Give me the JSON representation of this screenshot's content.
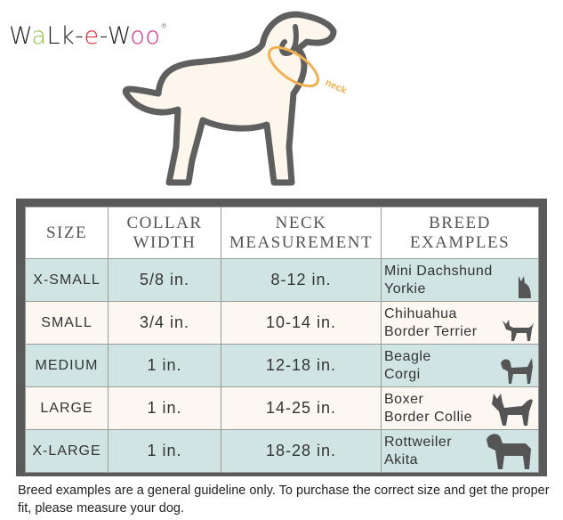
{
  "logo": {
    "parts": [
      {
        "text": "W",
        "color": "#222222"
      },
      {
        "text": "a",
        "color": "#8cc63f"
      },
      {
        "text": "Lk-",
        "color": "#222222"
      },
      {
        "text": "e",
        "color": "#e0262e"
      },
      {
        "text": "-W",
        "color": "#222222"
      },
      {
        "text": "oo",
        "color": "#d6247c"
      }
    ],
    "mark": "®"
  },
  "illustration": {
    "neck_label": "neck",
    "accent": "#f0b050"
  },
  "table": {
    "headers": [
      [
        "SIZE"
      ],
      [
        "COLLAR",
        "WIDTH"
      ],
      [
        "NECK",
        "MEASUREMENT"
      ],
      [
        "BREED",
        "EXAMPLES"
      ]
    ],
    "rows": [
      {
        "size": "X-SMALL",
        "width": "5/8 in.",
        "neck": "8-12 in.",
        "breeds": [
          "Mini Dachshund",
          "Yorkie"
        ],
        "icon": "yorkie-icon"
      },
      {
        "size": "SMALL",
        "width": "3/4 in.",
        "neck": "10-14 in.",
        "breeds": [
          "Chihuahua",
          "Border Terrier"
        ],
        "icon": "chihuahua-icon"
      },
      {
        "size": "MEDIUM",
        "width": "1 in.",
        "neck": "12-18 in.",
        "breeds": [
          "Beagle",
          "Corgi"
        ],
        "icon": "beagle-icon"
      },
      {
        "size": "LARGE",
        "width": "1 in.",
        "neck": "14-25 in.",
        "breeds": [
          "Boxer",
          "Border Collie"
        ],
        "icon": "collie-icon"
      },
      {
        "size": "X-LARGE",
        "width": "1 in.",
        "neck": "18-28 in.",
        "breeds": [
          "Rottweiler",
          "Akita"
        ],
        "icon": "rottweiler-icon"
      }
    ]
  },
  "footnote": "Breed examples are a general guideline only. To purchase the correct size and get the proper fit, please measure your dog."
}
